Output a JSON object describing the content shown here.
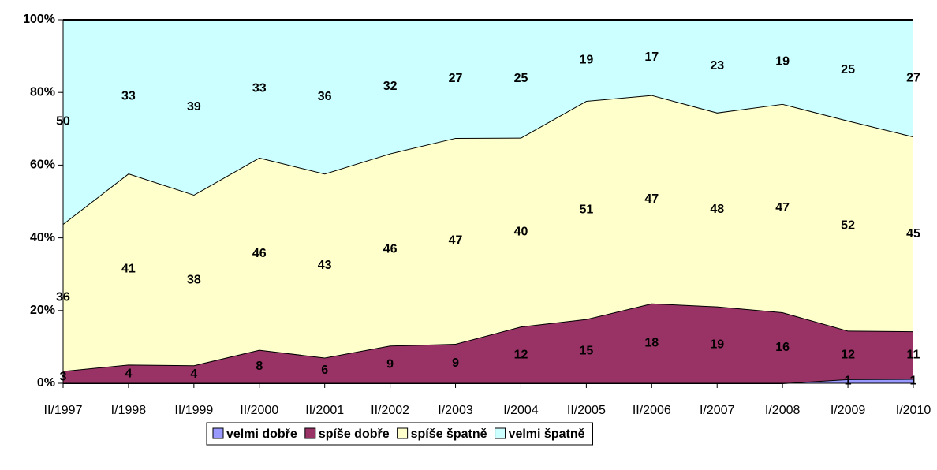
{
  "chart_data": {
    "type": "area",
    "stacking": "percent",
    "categories": [
      "II/1997",
      "I/1998",
      "II/1999",
      "II/2000",
      "II/2001",
      "II/2002",
      "I/2003",
      "I/2004",
      "II/2005",
      "II/2006",
      "I/2007",
      "I/2008",
      "I/2009",
      "I/2010"
    ],
    "series": [
      {
        "name": "velmi dobře",
        "color": "#9999ff",
        "values": [
          0,
          0,
          0,
          0,
          0,
          0,
          0,
          0,
          0,
          0,
          0,
          0,
          1,
          1
        ]
      },
      {
        "name": "spíše dobře",
        "color": "#993366",
        "values": [
          3,
          4,
          4,
          8,
          6,
          9,
          9,
          12,
          15,
          18,
          19,
          16,
          12,
          11
        ]
      },
      {
        "name": "spíše špatně",
        "color": "#ffffcc",
        "values": [
          36,
          41,
          38,
          46,
          43,
          46,
          47,
          40,
          51,
          47,
          48,
          47,
          52,
          45
        ]
      },
      {
        "name": "velmi špatně",
        "color": "#ccffff",
        "values": [
          50,
          33,
          39,
          33,
          36,
          32,
          27,
          25,
          19,
          17,
          23,
          19,
          25,
          27
        ]
      }
    ],
    "ylim": [
      0,
      100
    ],
    "yticks": [
      {
        "value": 0,
        "label": "0%"
      },
      {
        "value": 20,
        "label": "20%"
      },
      {
        "value": 40,
        "label": "40%"
      },
      {
        "value": 60,
        "label": "60%"
      },
      {
        "value": 80,
        "label": "80%"
      },
      {
        "value": 100,
        "label": "100%"
      }
    ],
    "legend": "bottom"
  }
}
